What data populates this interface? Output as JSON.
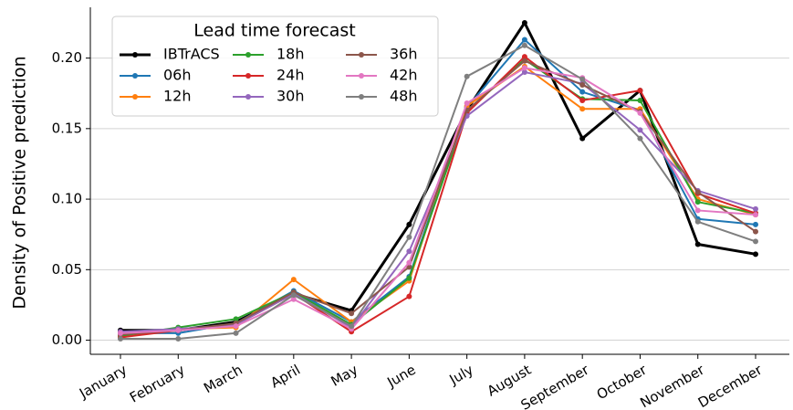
{
  "chart_data": {
    "type": "line",
    "y_label": "Density of Positive prediction",
    "legend_title": "Lead time forecast",
    "legend_position": "upper left",
    "grid": true,
    "categories": [
      "January",
      "February",
      "March",
      "April",
      "May",
      "June",
      "July",
      "August",
      "September",
      "October",
      "November",
      "December"
    ],
    "ylim": [
      -0.01,
      0.236
    ],
    "yticks": [
      {
        "value": 0,
        "label": "0.00"
      },
      {
        "value": 0.05,
        "label": "0.05"
      },
      {
        "value": 0.1,
        "label": "0.10"
      },
      {
        "value": 0.15,
        "label": "0.15"
      },
      {
        "value": 0.2,
        "label": "0.20"
      }
    ],
    "series": [
      {
        "name": "IBTrACS",
        "color": "#000000",
        "values": [
          0.007,
          0.007,
          0.013,
          0.033,
          0.021,
          0.082,
          0.163,
          0.225,
          0.143,
          0.177,
          0.068,
          0.061
        ]
      },
      {
        "name": "06h",
        "color": "#1f77b4",
        "values": [
          0.005,
          0.005,
          0.012,
          0.035,
          0.013,
          0.045,
          0.165,
          0.213,
          0.176,
          0.163,
          0.086,
          0.082
        ]
      },
      {
        "name": "12h",
        "color": "#ff7f0e",
        "values": [
          0.002,
          0.008,
          0.009,
          0.043,
          0.013,
          0.042,
          0.166,
          0.194,
          0.164,
          0.164,
          0.1,
          0.089
        ]
      },
      {
        "name": "18h",
        "color": "#2ca02c",
        "values": [
          0.003,
          0.009,
          0.015,
          0.034,
          0.011,
          0.044,
          0.162,
          0.199,
          0.171,
          0.17,
          0.098,
          0.09
        ]
      },
      {
        "name": "24h",
        "color": "#d62728",
        "values": [
          0.002,
          0.007,
          0.011,
          0.033,
          0.006,
          0.031,
          0.161,
          0.201,
          0.17,
          0.177,
          0.104,
          0.09
        ]
      },
      {
        "name": "30h",
        "color": "#9467bd",
        "values": [
          0.006,
          0.008,
          0.011,
          0.033,
          0.009,
          0.063,
          0.159,
          0.19,
          0.182,
          0.149,
          0.106,
          0.093
        ]
      },
      {
        "name": "36h",
        "color": "#8c564b",
        "values": [
          0.004,
          0.007,
          0.012,
          0.034,
          0.019,
          0.052,
          0.163,
          0.198,
          0.181,
          0.162,
          0.105,
          0.077
        ]
      },
      {
        "name": "42h",
        "color": "#e377c2",
        "values": [
          0.005,
          0.007,
          0.01,
          0.029,
          0.008,
          0.055,
          0.168,
          0.193,
          0.186,
          0.161,
          0.092,
          0.089
        ]
      },
      {
        "name": "48h",
        "color": "#7f7f7f",
        "values": [
          0.001,
          0.001,
          0.005,
          0.032,
          0.01,
          0.073,
          0.187,
          0.209,
          0.185,
          0.143,
          0.084,
          0.07
        ]
      }
    ]
  }
}
